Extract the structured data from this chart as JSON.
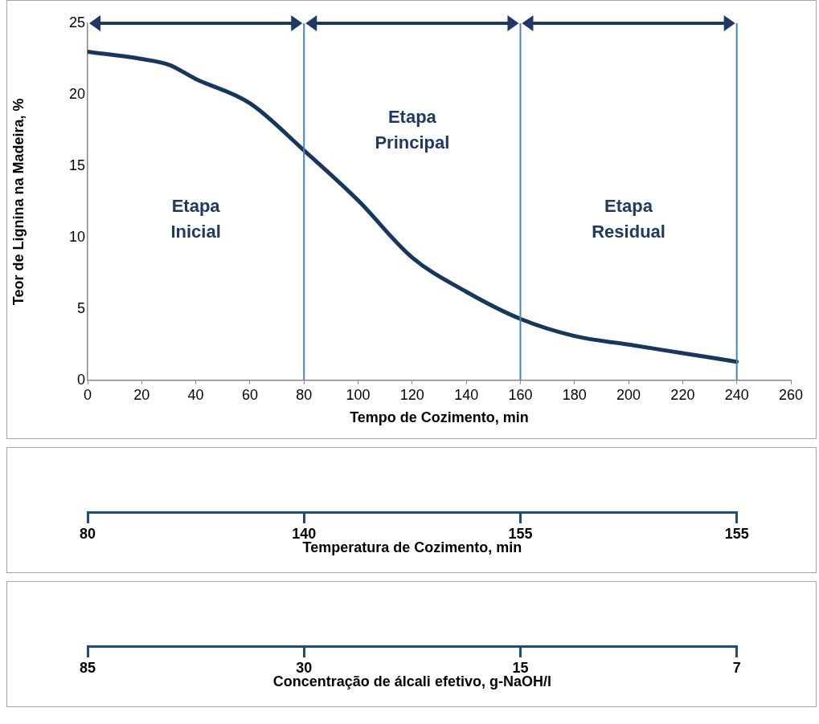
{
  "chart_data": [
    {
      "type": "line",
      "xlabel": "Tempo de Cozimento, min",
      "ylabel": "Teor de Lignina na Madeira, %",
      "x": [
        0,
        20,
        30,
        40,
        60,
        80,
        100,
        120,
        140,
        160,
        180,
        200,
        220,
        240
      ],
      "series": [
        {
          "color": "#17375e",
          "values": [
            23,
            22.5,
            22.1,
            21.1,
            19.4,
            16.1,
            12.6,
            8.6,
            6.2,
            4.3,
            3.1,
            2.5,
            1.9,
            1.3
          ]
        }
      ],
      "xlim": [
        0,
        260
      ],
      "xticks": [
        0,
        20,
        40,
        60,
        80,
        100,
        120,
        140,
        160,
        180,
        200,
        220,
        240,
        260
      ],
      "ylim": [
        0,
        25
      ],
      "yticks": [
        0,
        5,
        10,
        15,
        20,
        25
      ],
      "ref_lines": [
        {
          "axis": "x",
          "value": 80,
          "color": "#4f81bd"
        },
        {
          "axis": "x",
          "value": 160,
          "color": "#4f81bd"
        },
        {
          "axis": "x",
          "value": 240,
          "color": "#4f81bd"
        }
      ],
      "annotations": [
        "Etapa Inicial",
        "Etapa Principal",
        "Etapa Residual"
      ],
      "grid": false,
      "legend": false,
      "marker": "none"
    },
    {
      "type": "other",
      "xlabel": "Temperatura de Cozimento, min",
      "categories": [
        "80",
        "140",
        "155",
        "155"
      ]
    },
    {
      "type": "other",
      "xlabel": "Concentração de álcali efetivo, g-NaOH/l",
      "categories": [
        "85",
        "30",
        "15",
        "7"
      ]
    }
  ]
}
